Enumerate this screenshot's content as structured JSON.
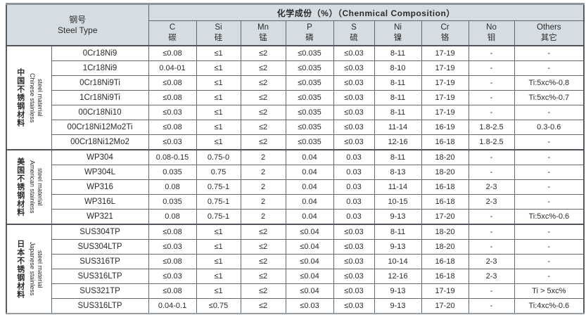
{
  "colors": {
    "header_bg": "#d5dde3",
    "border_heavy": "#4e545a",
    "border_light": "#8d969d",
    "grid_line": "#63686d",
    "text": "#2a2a2a"
  },
  "table": {
    "steel_type_header": {
      "zh": "钢号",
      "en": "Steel Type"
    },
    "composition_header": "化学成份（%）（Chenmical Composition）",
    "columns": [
      {
        "en": "C",
        "zh": "碳"
      },
      {
        "en": "Si",
        "zh": "硅"
      },
      {
        "en": "Mn",
        "zh": "锰"
      },
      {
        "en": "P",
        "zh": "磷"
      },
      {
        "en": "S",
        "zh": "硫"
      },
      {
        "en": "Ni",
        "zh": "镍"
      },
      {
        "en": "Cr",
        "zh": "铬"
      },
      {
        "en": "No",
        "zh": "钼"
      },
      {
        "en": "Others",
        "zh": "其它"
      }
    ],
    "groups": [
      {
        "label_zh": "中国不锈钢材料",
        "label_en_lines": [
          "Chinese stainless",
          "steel material"
        ],
        "rows": [
          {
            "name": "0Cr18Ni9",
            "values": [
              "≤0.08",
              "≤1",
              "≤2",
              "≤0.035",
              "≤0.03",
              "8-11",
              "17-19",
              "-",
              "-"
            ]
          },
          {
            "name": "1Cr18Ni9",
            "values": [
              "0.04-01",
              "≤1",
              "≤2",
              "≤0.035",
              "≤0.03",
              "8-10",
              "17-19",
              "-",
              "-"
            ]
          },
          {
            "name": "0Cr18Ni9Ti",
            "values": [
              "≤0.08",
              "≤1",
              "≤2",
              "≤0.035",
              "≤0.03",
              "8-11",
              "17-19",
              "-",
              "Ti:5xc%-0.8"
            ]
          },
          {
            "name": "1Cr18Ni9Ti",
            "values": [
              "≤0.08",
              "≤1",
              "≤2",
              "≤0.035",
              "≤0.03",
              "8-11",
              "17-19",
              "-",
              "Ti:5xc%-0.7"
            ]
          },
          {
            "name": "00Cr18Ni10",
            "values": [
              "≤0.03",
              "≤1",
              "≤2",
              "≤0.035",
              "≤0.03",
              "8-11",
              "17-19",
              "-",
              "-"
            ]
          },
          {
            "name": "00Cr18Ni12Mo2Ti",
            "values": [
              "≤0.08",
              "≤1",
              "≤2",
              "≤0.035",
              "≤0.03",
              "11-14",
              "16-19",
              "1.8-2.5",
              "0.3-0.6"
            ]
          },
          {
            "name": "00Cr18Ni12Mo2",
            "values": [
              "≤0.03",
              "≤1",
              "≤2",
              "≤0.035",
              "≤0.03",
              "12-16",
              "16-18",
              "1.8-2.5",
              "-"
            ]
          }
        ]
      },
      {
        "label_zh": "美国不锈钢材料",
        "label_en_lines": [
          "American stainless",
          "steel material"
        ],
        "rows": [
          {
            "name": "WP304",
            "values": [
              "0.08-0.15",
              "0.75-0",
              "2",
              "0.04",
              "0.03",
              "8-11",
              "18-20",
              "-",
              "-"
            ]
          },
          {
            "name": "WP304L",
            "values": [
              "0.035",
              "0.75",
              "2",
              "0.04",
              "0.03",
              "8-13",
              "18-20",
              "-",
              "-"
            ]
          },
          {
            "name": "WP316",
            "values": [
              "0.08",
              "0.75-1",
              "2",
              "0.04",
              "0.03",
              "11-14",
              "16-18",
              "2-3",
              "-"
            ]
          },
          {
            "name": "WP316L",
            "values": [
              "0.035",
              "0.75-1",
              "2",
              "0.04",
              "0.03",
              "10-15",
              "16-18",
              "2-3",
              "-"
            ]
          },
          {
            "name": "WP321",
            "values": [
              "0.08",
              "0.75-1",
              "2",
              "0.04",
              "0.03",
              "9-13",
              "17-20",
              "-",
              "Ti:5xc%-0.6"
            ]
          }
        ]
      },
      {
        "label_zh": "日本不锈钢材料",
        "label_en_lines": [
          "Japanese stainless",
          "steel material"
        ],
        "rows": [
          {
            "name": "SUS304TP",
            "values": [
              "≤0.08",
              "≤1",
              "≤2",
              "≤0.04",
              "≤0.03",
              "8-11",
              "18-20",
              "-",
              "-"
            ]
          },
          {
            "name": "SUS304LTP",
            "values": [
              "≤0.03",
              "≤1",
              "≤2",
              "≤0.04",
              "≤0.03",
              "9-13",
              "18-20",
              "-",
              "-"
            ]
          },
          {
            "name": "SUS316TP",
            "values": [
              "≤0.08",
              "≤1",
              "≤2",
              "≤0.04",
              "≤0.03",
              "10-14",
              "16-18",
              "2-3",
              "-"
            ]
          },
          {
            "name": "SUS316LTP",
            "values": [
              "≤0.03",
              "≤1",
              "≤2",
              "≤0.04",
              "≤0.03",
              "12-16",
              "16-18",
              "2-3",
              "-"
            ]
          },
          {
            "name": "SUS321TP",
            "values": [
              "≤0.08",
              "≤1",
              "≤2",
              "≤0.04",
              "≤0.03",
              "9-13",
              "17-19",
              "-",
              "Ti > 5xc%"
            ]
          },
          {
            "name": "SUS316LTP",
            "values": [
              "0.04-0.1",
              "≤0.75",
              "≤2",
              "≤0.03",
              "≤0.03",
              "9-13",
              "17-20",
              "-",
              "Ti:4xc%-0.6"
            ]
          }
        ]
      }
    ]
  }
}
